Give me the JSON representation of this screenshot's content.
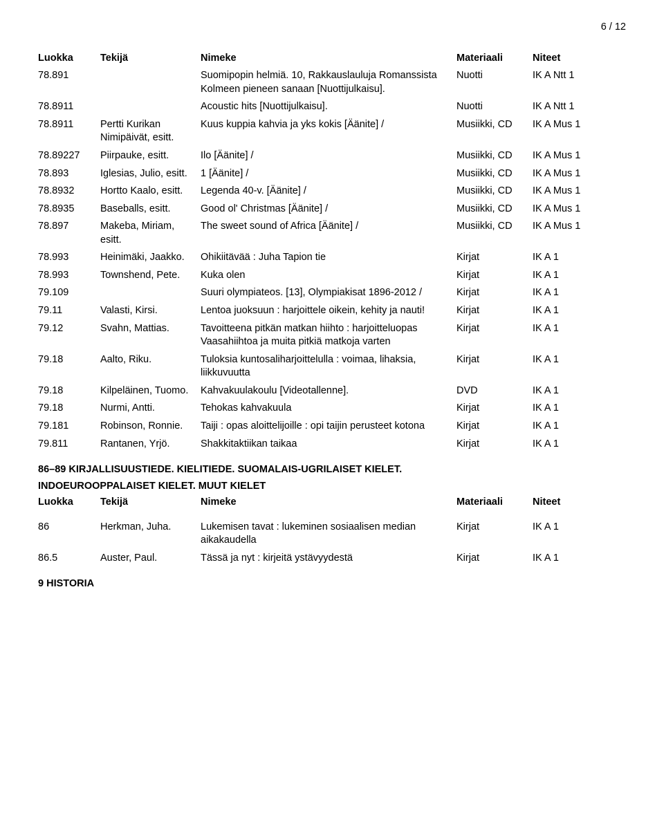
{
  "page_number": "6 / 12",
  "headers": {
    "class": "Luokka",
    "author": "Tekijä",
    "title": "Nimeke",
    "material": "Materiaali",
    "shelf": "Niteet"
  },
  "rows1": [
    {
      "class": "78.891",
      "author": "",
      "title": "Suomipopin helmiä. 10, Rakkauslauluja Romanssista Kolmeen pieneen sanaan [Nuottijulkaisu].",
      "material": "Nuotti",
      "shelf": "IK  A Ntt 1"
    },
    {
      "class": "78.8911",
      "author": "",
      "title": "Acoustic hits [Nuottijulkaisu].",
      "material": "Nuotti",
      "shelf": "IK  A Ntt 1"
    },
    {
      "class": "78.8911",
      "author": "Pertti Kurikan Nimipäivät, esitt.",
      "title": "Kuus kuppia kahvia ja yks kokis [Äänite] /",
      "material": "Musiikki, CD",
      "shelf": "IK  A Mus 1"
    },
    {
      "class": "78.89227",
      "author": "Piirpauke, esitt.",
      "title": "Ilo [Äänite] /",
      "material": "Musiikki, CD",
      "shelf": "IK  A Mus 1"
    },
    {
      "class": "78.893",
      "author": "Iglesias, Julio, esitt.",
      "title": "1 [Äänite] /",
      "material": "Musiikki, CD",
      "shelf": "IK  A Mus 1"
    },
    {
      "class": "78.8932",
      "author": "Hortto Kaalo, esitt.",
      "title": "Legenda 40-v. [Äänite] /",
      "material": "Musiikki, CD",
      "shelf": "IK  A Mus 1"
    },
    {
      "class": "78.8935",
      "author": "Baseballs, esitt.",
      "title": "Good ol' Christmas [Äänite] /",
      "material": "Musiikki, CD",
      "shelf": "IK  A Mus 1"
    },
    {
      "class": "78.897",
      "author": "Makeba, Miriam, esitt.",
      "title": "The sweet sound of Africa [Äänite] /",
      "material": "Musiikki, CD",
      "shelf": "IK  A Mus 1"
    },
    {
      "class": "78.993",
      "author": "Heinimäki, Jaakko.",
      "title": "Ohikiitävää : Juha Tapion tie",
      "material": "Kirjat",
      "shelf": "IK  A 1"
    },
    {
      "class": "78.993",
      "author": "Townshend, Pete.",
      "title": "Kuka olen",
      "material": "Kirjat",
      "shelf": "IK  A 1"
    },
    {
      "class": "79.109",
      "author": "",
      "title": "Suuri olympiateos. [13], Olympiakisat 1896-2012 /",
      "material": "Kirjat",
      "shelf": "IK  A 1"
    },
    {
      "class": "79.11",
      "author": "Valasti, Kirsi.",
      "title": "Lentoa juoksuun : harjoittele oikein, kehity ja nauti!",
      "material": "Kirjat",
      "shelf": "IK  A 1"
    },
    {
      "class": "79.12",
      "author": "Svahn, Mattias.",
      "title": "Tavoitteena pitkän matkan hiihto : harjoitteluopas Vaasahiihtoa ja muita pitkiä matkoja varten",
      "material": "Kirjat",
      "shelf": "IK  A 1"
    },
    {
      "class": "79.18",
      "author": "Aalto, Riku.",
      "title": "Tuloksia kuntosaliharjoittelulla : voimaa, lihaksia, liikkuvuutta",
      "material": "Kirjat",
      "shelf": "IK  A 1"
    },
    {
      "class": "79.18",
      "author": "Kilpeläinen, Tuomo.",
      "title": "Kahvakuulakoulu [Videotallenne].",
      "material": "DVD",
      "shelf": "IK  A 1"
    },
    {
      "class": "79.18",
      "author": "Nurmi, Antti.",
      "title": "Tehokas kahvakuula",
      "material": "Kirjat",
      "shelf": "IK  A 1"
    },
    {
      "class": "79.181",
      "author": "Robinson, Ronnie.",
      "title": "Taiji : opas aloittelijoille : opi taijin perusteet kotona",
      "material": "Kirjat",
      "shelf": "IK  A 1"
    },
    {
      "class": "79.811",
      "author": "Rantanen, Yrjö.",
      "title": "Shakkitaktiikan taikaa",
      "material": "Kirjat",
      "shelf": "IK  A 1"
    }
  ],
  "section2": {
    "heading_lines": [
      "86–89 KIRJALLISUUSTIEDE. KIELITIEDE. SUOMALAIS-UGRILAISET KIELET.",
      "INDOEUROOPPALAISET KIELET. MUUT KIELET"
    ]
  },
  "rows2": [
    {
      "class": "86",
      "author": "Herkman, Juha.",
      "title": "Lukemisen tavat : lukeminen sosiaalisen median aikakaudella",
      "material": "Kirjat",
      "shelf": "IK  A 1"
    },
    {
      "class": "86.5",
      "author": "Auster, Paul.",
      "title": "Tässä ja nyt : kirjeitä ystävyydestä",
      "material": "Kirjat",
      "shelf": "IK  A 1"
    }
  ],
  "section3": {
    "heading": "9 HISTORIA"
  }
}
